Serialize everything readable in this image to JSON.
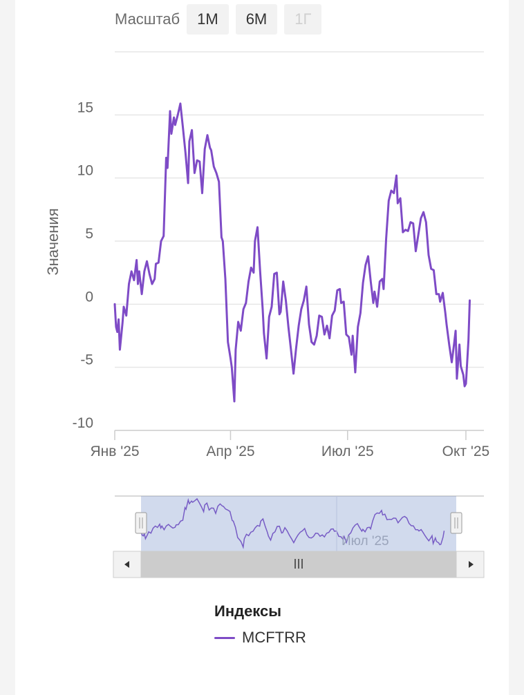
{
  "zoom": {
    "label": "Масштаб",
    "buttons": [
      {
        "label": "1М",
        "disabled": false
      },
      {
        "label": "6М",
        "disabled": false
      },
      {
        "label": "1Г",
        "disabled": true
      }
    ]
  },
  "legend": {
    "title": "Индексы",
    "items": [
      {
        "label": "MCFTRR",
        "color": "#7e4bc6"
      }
    ]
  },
  "navigator": {
    "label": "Июл '25"
  },
  "colors": {
    "series": "#7e4bc6",
    "grid": "#e6e6e6",
    "axis_text": "#666666",
    "navigator_mask": "rgba(102,133,194,0.3)",
    "scrollbar_track": "#f2f2f2",
    "scrollbar_thumb": "#cccccc"
  },
  "chart_data": {
    "type": "line",
    "title": "",
    "ylabel": "Значения",
    "xlabel": "",
    "ylim": [
      -10,
      20
    ],
    "yticks": [
      -10,
      -5,
      0,
      5,
      10,
      15
    ],
    "xlim": [
      "2025-01-01",
      "2025-10-15"
    ],
    "xticks": [
      {
        "date": "2025-01-01",
        "label": "Янв '25"
      },
      {
        "date": "2025-04-01",
        "label": "Апр '25"
      },
      {
        "date": "2025-07-01",
        "label": "Июл '25"
      },
      {
        "date": "2025-10-01",
        "label": "Окт '25"
      }
    ],
    "grid": true,
    "legend_position": "bottom",
    "series": [
      {
        "name": "MCFTRR",
        "color": "#7e4bc6",
        "points": [
          [
            "2025-01-01",
            0.0
          ],
          [
            "2025-01-02",
            -1.8
          ],
          [
            "2025-01-03",
            -2.2
          ],
          [
            "2025-01-04",
            -1.2
          ],
          [
            "2025-01-05",
            -3.6
          ],
          [
            "2025-01-07",
            -1.5
          ],
          [
            "2025-01-08",
            -0.2
          ],
          [
            "2025-01-10",
            -0.9
          ],
          [
            "2025-01-12",
            1.6
          ],
          [
            "2025-01-14",
            2.6
          ],
          [
            "2025-01-16",
            1.9
          ],
          [
            "2025-01-18",
            3.5
          ],
          [
            "2025-01-19",
            1.6
          ],
          [
            "2025-01-20",
            2.6
          ],
          [
            "2025-01-22",
            0.8
          ],
          [
            "2025-01-24",
            2.6
          ],
          [
            "2025-01-26",
            3.4
          ],
          [
            "2025-01-28",
            2.4
          ],
          [
            "2025-01-30",
            1.6
          ],
          [
            "2025-02-01",
            2.0
          ],
          [
            "2025-02-02",
            3.2
          ],
          [
            "2025-02-04",
            3.3
          ],
          [
            "2025-02-06",
            5.0
          ],
          [
            "2025-02-08",
            5.4
          ],
          [
            "2025-02-10",
            11.6
          ],
          [
            "2025-02-11",
            10.8
          ],
          [
            "2025-02-13",
            15.3
          ],
          [
            "2025-02-14",
            13.5
          ],
          [
            "2025-02-16",
            14.8
          ],
          [
            "2025-02-17",
            14.2
          ],
          [
            "2025-02-19",
            15.0
          ],
          [
            "2025-02-21",
            15.9
          ],
          [
            "2025-02-23",
            14.0
          ],
          [
            "2025-02-25",
            12.0
          ],
          [
            "2025-02-27",
            9.6
          ],
          [
            "2025-02-28",
            12.9
          ],
          [
            "2025-03-02",
            13.8
          ],
          [
            "2025-03-04",
            10.4
          ],
          [
            "2025-03-06",
            11.4
          ],
          [
            "2025-03-08",
            11.3
          ],
          [
            "2025-03-10",
            8.8
          ],
          [
            "2025-03-12",
            12.3
          ],
          [
            "2025-03-14",
            13.4
          ],
          [
            "2025-03-16",
            12.4
          ],
          [
            "2025-03-17",
            12.2
          ],
          [
            "2025-03-19",
            10.9
          ],
          [
            "2025-03-21",
            10.4
          ],
          [
            "2025-03-23",
            9.7
          ],
          [
            "2025-03-25",
            5.3
          ],
          [
            "2025-03-26",
            5.0
          ],
          [
            "2025-03-28",
            2.0
          ],
          [
            "2025-03-30",
            -3.0
          ],
          [
            "2025-04-01",
            -4.3
          ],
          [
            "2025-04-02",
            -5.0
          ],
          [
            "2025-04-04",
            -7.7
          ],
          [
            "2025-04-05",
            -3.6
          ],
          [
            "2025-04-07",
            -1.4
          ],
          [
            "2025-04-09",
            -2.1
          ],
          [
            "2025-04-11",
            -0.4
          ],
          [
            "2025-04-13",
            0.1
          ],
          [
            "2025-04-15",
            1.8
          ],
          [
            "2025-04-17",
            2.9
          ],
          [
            "2025-04-19",
            2.5
          ],
          [
            "2025-04-20",
            5.0
          ],
          [
            "2025-04-22",
            6.1
          ],
          [
            "2025-04-24",
            2.6
          ],
          [
            "2025-04-26",
            -0.4
          ],
          [
            "2025-04-27",
            -2.3
          ],
          [
            "2025-04-29",
            -4.3
          ],
          [
            "2025-05-01",
            -1.0
          ],
          [
            "2025-05-03",
            -0.2
          ],
          [
            "2025-05-05",
            2.4
          ],
          [
            "2025-05-07",
            2.5
          ],
          [
            "2025-05-09",
            -0.8
          ],
          [
            "2025-05-10",
            -0.6
          ],
          [
            "2025-05-12",
            1.8
          ],
          [
            "2025-05-14",
            0.3
          ],
          [
            "2025-05-16",
            -1.8
          ],
          [
            "2025-05-18",
            -3.6
          ],
          [
            "2025-05-20",
            -5.5
          ],
          [
            "2025-05-22",
            -3.5
          ],
          [
            "2025-05-24",
            -1.7
          ],
          [
            "2025-05-26",
            -0.4
          ],
          [
            "2025-05-28",
            0.3
          ],
          [
            "2025-05-30",
            1.4
          ],
          [
            "2025-06-01",
            -1.6
          ],
          [
            "2025-06-03",
            -3.0
          ],
          [
            "2025-06-05",
            -3.2
          ],
          [
            "2025-06-07",
            -2.5
          ],
          [
            "2025-06-09",
            -0.9
          ],
          [
            "2025-06-11",
            -1.0
          ],
          [
            "2025-06-13",
            -2.4
          ],
          [
            "2025-06-15",
            -1.7
          ],
          [
            "2025-06-17",
            -2.7
          ],
          [
            "2025-06-19",
            -0.9
          ],
          [
            "2025-06-21",
            -0.5
          ],
          [
            "2025-06-23",
            1.1
          ],
          [
            "2025-06-25",
            1.2
          ],
          [
            "2025-06-26",
            0.1
          ],
          [
            "2025-06-28",
            0.2
          ],
          [
            "2025-06-30",
            -2.4
          ],
          [
            "2025-07-02",
            -2.6
          ],
          [
            "2025-07-04",
            -4.0
          ],
          [
            "2025-07-05",
            -2.5
          ],
          [
            "2025-07-07",
            -5.4
          ],
          [
            "2025-07-09",
            -1.8
          ],
          [
            "2025-07-11",
            -0.7
          ],
          [
            "2025-07-13",
            1.7
          ],
          [
            "2025-07-15",
            3.1
          ],
          [
            "2025-07-17",
            3.8
          ],
          [
            "2025-07-19",
            1.8
          ],
          [
            "2025-07-21",
            0.1
          ],
          [
            "2025-07-22",
            1.0
          ],
          [
            "2025-07-24",
            -0.2
          ],
          [
            "2025-07-26",
            1.8
          ],
          [
            "2025-07-28",
            2.0
          ],
          [
            "2025-07-29",
            1.2
          ],
          [
            "2025-07-31",
            5.2
          ],
          [
            "2025-08-02",
            8.2
          ],
          [
            "2025-08-04",
            9.0
          ],
          [
            "2025-08-06",
            8.8
          ],
          [
            "2025-08-08",
            10.2
          ],
          [
            "2025-08-09",
            8.0
          ],
          [
            "2025-08-11",
            8.4
          ],
          [
            "2025-08-13",
            5.7
          ],
          [
            "2025-08-15",
            5.9
          ],
          [
            "2025-08-17",
            5.8
          ],
          [
            "2025-08-19",
            6.5
          ],
          [
            "2025-08-21",
            6.4
          ],
          [
            "2025-08-23",
            4.2
          ],
          [
            "2025-08-25",
            5.5
          ],
          [
            "2025-08-27",
            6.8
          ],
          [
            "2025-08-29",
            7.3
          ],
          [
            "2025-08-31",
            6.5
          ],
          [
            "2025-09-02",
            3.9
          ],
          [
            "2025-09-04",
            2.8
          ],
          [
            "2025-09-06",
            2.7
          ],
          [
            "2025-09-08",
            0.8
          ],
          [
            "2025-09-10",
            0.8
          ],
          [
            "2025-09-11",
            0.2
          ],
          [
            "2025-09-13",
            0.9
          ],
          [
            "2025-09-15",
            -0.7
          ],
          [
            "2025-09-16",
            -1.6
          ],
          [
            "2025-09-18",
            -3.2
          ],
          [
            "2025-09-20",
            -4.6
          ],
          [
            "2025-09-22",
            -3.0
          ],
          [
            "2025-09-23",
            -2.1
          ],
          [
            "2025-09-24",
            -5.9
          ],
          [
            "2025-09-26",
            -3.2
          ],
          [
            "2025-09-27",
            -4.9
          ],
          [
            "2025-09-29",
            -5.6
          ],
          [
            "2025-09-30",
            -6.5
          ],
          [
            "2025-10-01",
            -6.3
          ],
          [
            "2025-10-02",
            -4.6
          ],
          [
            "2025-10-03",
            -2.8
          ],
          [
            "2025-10-04",
            0.3
          ]
        ]
      }
    ]
  }
}
